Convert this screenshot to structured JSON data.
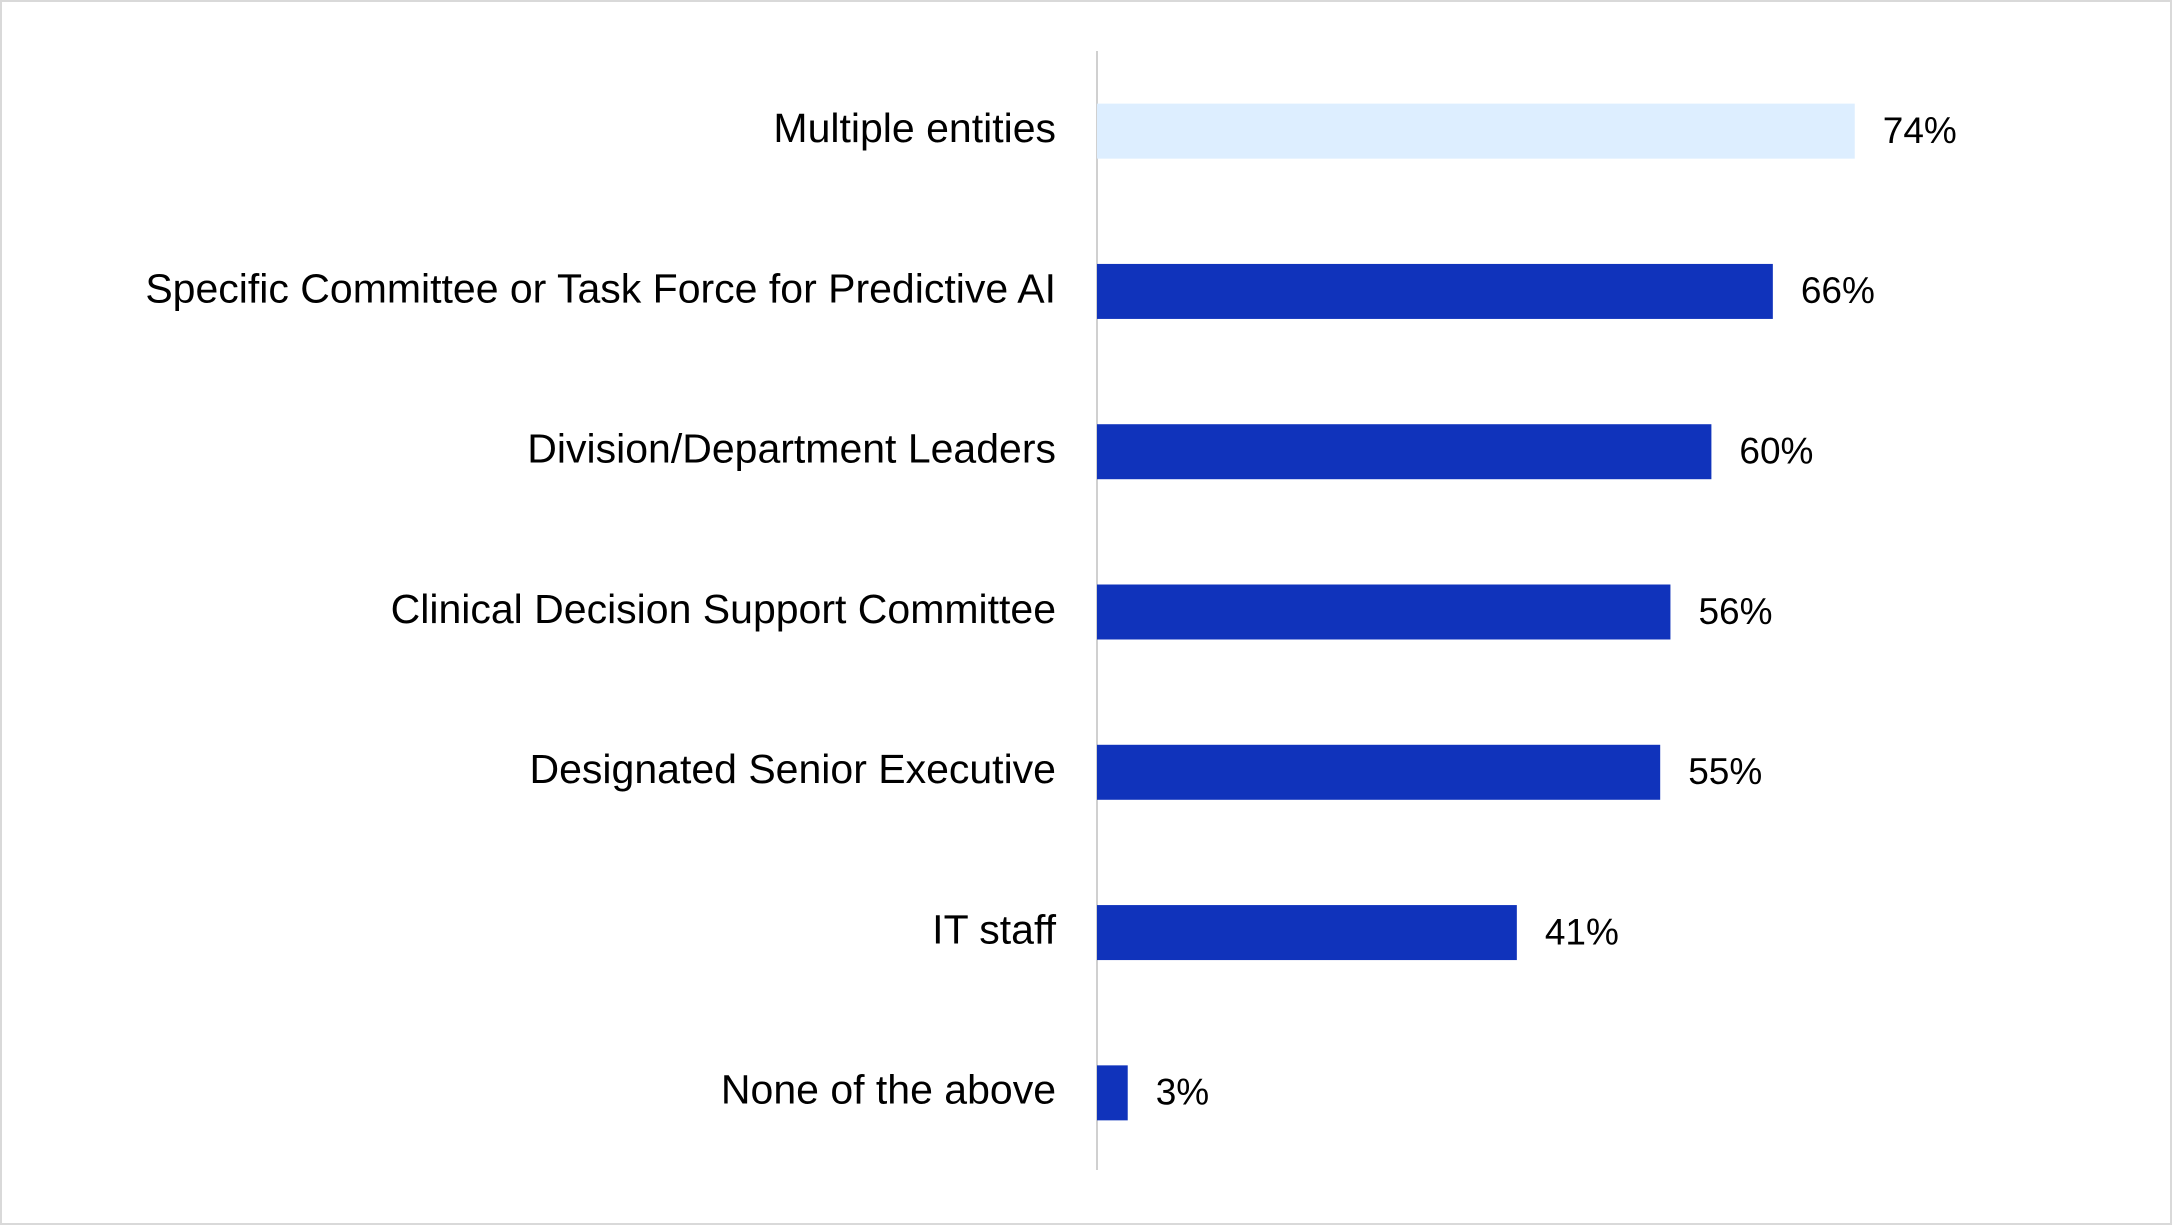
{
  "chart_data": {
    "type": "bar",
    "orientation": "horizontal",
    "categories": [
      "Multiple entities",
      "Specific Committee or Task Force for Predictive AI",
      "Division/Department Leaders",
      "Clinical Decision Support Committee",
      "Designated Senior Executive",
      "IT staff",
      "None of the above"
    ],
    "values": [
      74,
      66,
      60,
      56,
      55,
      41,
      3
    ],
    "value_labels": [
      "74%",
      "66%",
      "60%",
      "56%",
      "55%",
      "41%",
      "3%"
    ],
    "colors": [
      "#ddeeff",
      "#1033bb",
      "#1033bb",
      "#1033bb",
      "#1033bb",
      "#1033bb",
      "#1033bb"
    ],
    "xlim": [
      0,
      100
    ]
  }
}
